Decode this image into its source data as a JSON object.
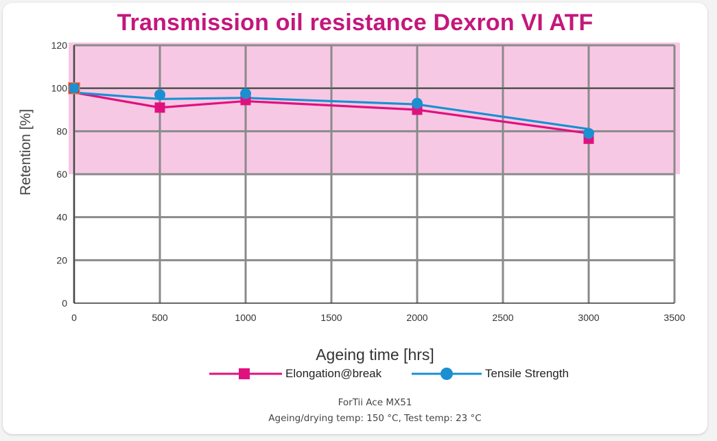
{
  "chart_data": {
    "type": "line",
    "title": "Transmission oil resistance Dexron VI ATF",
    "xlabel": "Ageing time [hrs]",
    "ylabel": "Retention [%]",
    "xlim": [
      0,
      3500
    ],
    "ylim": [
      0,
      120
    ],
    "x_ticks": [
      "0",
      "500",
      "1000",
      "1500",
      "2000",
      "2500",
      "3000",
      "3500"
    ],
    "y_ticks": [
      "0",
      "20",
      "40",
      "60",
      "80",
      "100",
      "120"
    ],
    "grid": true,
    "highlight_band": {
      "from": 60,
      "to": 120,
      "color": "#f7c8e4"
    },
    "series": [
      {
        "name": "Elongation@break",
        "marker": "square",
        "color": "#e0117f",
        "points": [
          {
            "x": 0,
            "y": 100
          },
          {
            "x": 500,
            "y": 91
          },
          {
            "x": 1000,
            "y": 94.5
          },
          {
            "x": 2000,
            "y": 90
          },
          {
            "x": 3000,
            "y": 76.5
          }
        ],
        "line": [
          [
            0,
            98
          ],
          [
            500,
            91
          ],
          [
            1000,
            94
          ],
          [
            2000,
            90
          ],
          [
            3000,
            79
          ]
        ]
      },
      {
        "name": "Tensile Strength",
        "marker": "circle",
        "color": "#1b8fd2",
        "points": [
          {
            "x": 0,
            "y": 100
          },
          {
            "x": 500,
            "y": 97
          },
          {
            "x": 1000,
            "y": 97.5
          },
          {
            "x": 2000,
            "y": 93
          },
          {
            "x": 3000,
            "y": 79
          }
        ],
        "line": [
          [
            0,
            98
          ],
          [
            500,
            95
          ],
          [
            1000,
            95.5
          ],
          [
            2000,
            92.5
          ],
          [
            3000,
            81
          ]
        ]
      }
    ],
    "legend_position": "bottom",
    "reference_line_y": 100
  },
  "footnote": {
    "line1": "ForTii Ace MX51",
    "line2": "Ageing/drying temp: 150 °C, Test temp: 23 °C"
  }
}
